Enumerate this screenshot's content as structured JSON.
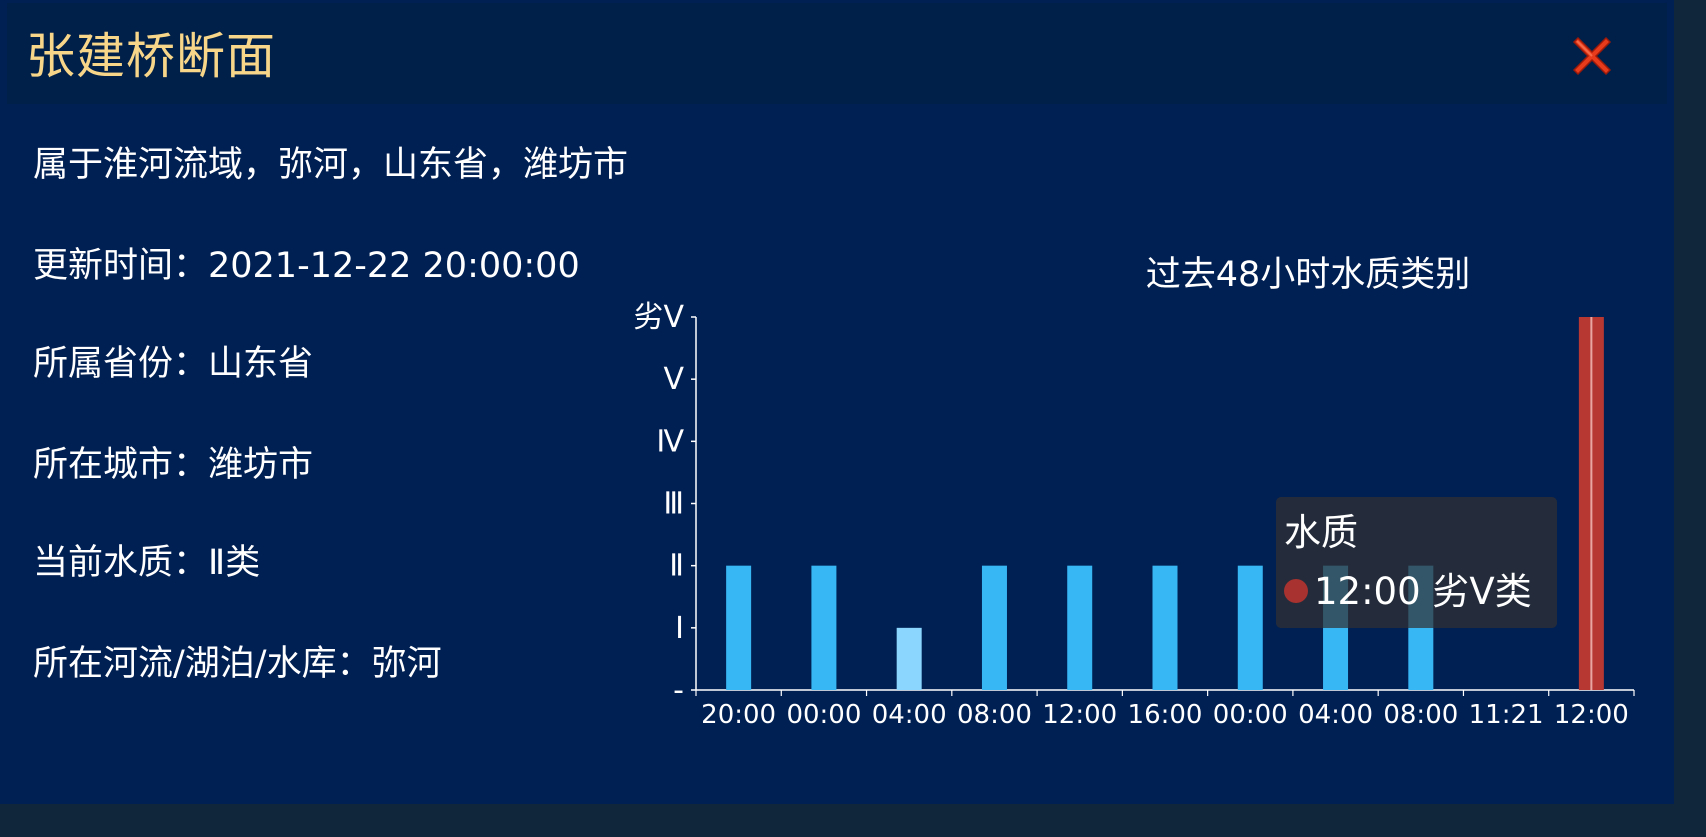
{
  "header": {
    "title": "张建桥断面"
  },
  "info": {
    "basin_line": "属于淮河流域，弥河，山东省，潍坊市",
    "update_time": "更新时间：2021-12-22 20:00:00",
    "province": "所属省份：山东省",
    "city": "所在城市：潍坊市",
    "current_quality": "当前水质：Ⅱ类",
    "river": "所在河流/湖泊/水库：弥河"
  },
  "chart_data": {
    "type": "bar",
    "title": "过去48小时水质类别",
    "categories": [
      "20:00",
      "00:00",
      "04:00",
      "08:00",
      "12:00",
      "16:00",
      "00:00",
      "04:00",
      "08:00",
      "11:21",
      "12:00"
    ],
    "y_tick_labels": [
      "-",
      "Ⅰ",
      "Ⅱ",
      "Ⅲ",
      "Ⅳ",
      "Ⅴ",
      "劣Ⅴ"
    ],
    "ylim": [
      0,
      6
    ],
    "series": [
      {
        "values": [
          2,
          2,
          1,
          2,
          2,
          2,
          2,
          2,
          2,
          0,
          6
        ],
        "colors": [
          "#38b7f5",
          "#38b7f5",
          "#8ad6ff",
          "#38b7f5",
          "#38b7f5",
          "#38b7f5",
          "#38b7f5",
          "#38b7f5",
          "#38b7f5",
          "#38b7f5",
          "#b73733"
        ]
      }
    ]
  },
  "tooltip": {
    "title": "水质",
    "value": "12:00 劣Ⅴ类",
    "dot_color": "#a7322f"
  },
  "colors": {
    "background": "#001f52",
    "title": "#f7d589",
    "text": "#ffffff",
    "bar": "#38b7f5",
    "bar_light": "#8ad6ff",
    "bar_alert": "#b73733"
  }
}
